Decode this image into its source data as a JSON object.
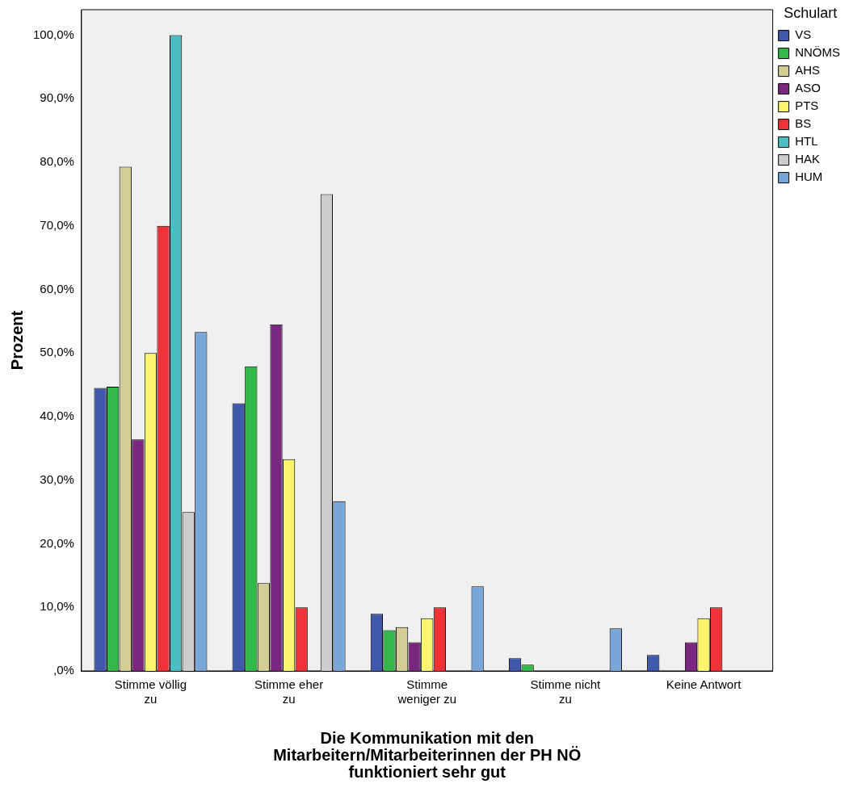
{
  "chart_data": {
    "type": "bar",
    "xlabel": "Die Kommunikation mit den Mitarbeitern/Mitarbeiterinnen der PH NÖ funktioniert sehr gut",
    "ylabel": "Prozent",
    "legend_title": "Schulart",
    "categories": [
      "Stimme völlig zu",
      "Stimme eher zu",
      "Stimme weniger zu",
      "Stimme nicht zu",
      "Keine Antwort"
    ],
    "series": [
      {
        "name": "VS",
        "color": "#3e58ac",
        "values": [
          44.5,
          42.1,
          9.0,
          2.0,
          2.5
        ]
      },
      {
        "name": "NNÖMS",
        "color": "#33b84a",
        "values": [
          44.7,
          47.9,
          6.4,
          1.0,
          null
        ]
      },
      {
        "name": "AHS",
        "color": "#d4cd96",
        "values": [
          79.3,
          13.8,
          6.9,
          null,
          null
        ]
      },
      {
        "name": "ASO",
        "color": "#7a287f",
        "values": [
          36.4,
          54.5,
          4.5,
          null,
          4.5
        ]
      },
      {
        "name": "PTS",
        "color": "#fbf56e",
        "values": [
          50.0,
          33.3,
          8.3,
          null,
          8.3
        ]
      },
      {
        "name": "BS",
        "color": "#ee3237",
        "values": [
          70.0,
          10.0,
          10.0,
          null,
          10.0
        ]
      },
      {
        "name": "HTL",
        "color": "#4cbdc1",
        "values": [
          100.0,
          null,
          null,
          null,
          null
        ]
      },
      {
        "name": "HAK",
        "color": "#cdcdcd",
        "values": [
          25.0,
          75.0,
          null,
          null,
          null
        ]
      },
      {
        "name": "HUM",
        "color": "#78a6d8",
        "values": [
          53.3,
          26.7,
          13.3,
          6.7,
          null
        ]
      }
    ],
    "ylim": [
      0,
      104
    ],
    "yticks": [
      {
        "value": 0,
        "label": ",0%"
      },
      {
        "value": 10,
        "label": "10,0%"
      },
      {
        "value": 20,
        "label": "20,0%"
      },
      {
        "value": 30,
        "label": "30,0%"
      },
      {
        "value": 40,
        "label": "40,0%"
      },
      {
        "value": 50,
        "label": "50,0%"
      },
      {
        "value": 60,
        "label": "60,0%"
      },
      {
        "value": 70,
        "label": "70,0%"
      },
      {
        "value": 80,
        "label": "80,0%"
      },
      {
        "value": 90,
        "label": "90,0%"
      },
      {
        "value": 100,
        "label": "100,0%"
      }
    ],
    "grid": false,
    "legend": "top right"
  }
}
